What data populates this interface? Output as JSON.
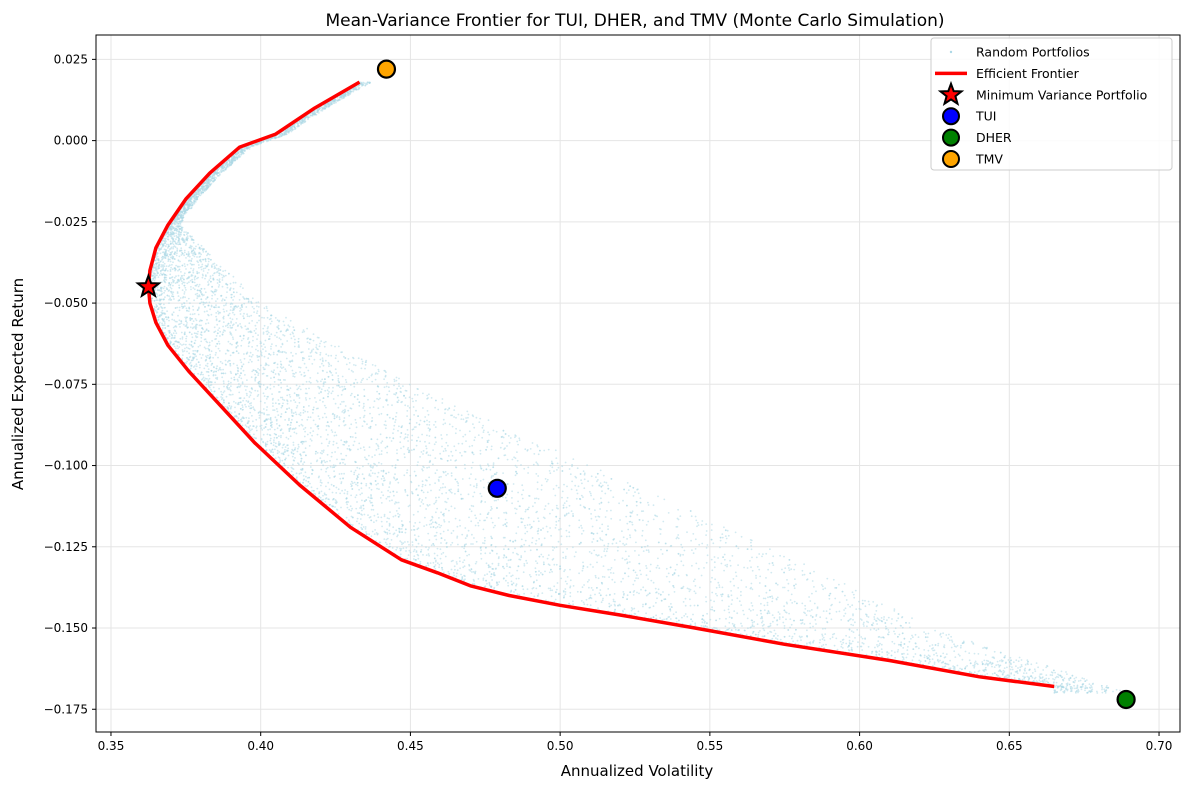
{
  "chart_data": {
    "type": "scatter",
    "title": "Mean-Variance Frontier for TUI, DHER, and TMV (Monte Carlo Simulation)",
    "xlabel": "Annualized Volatility",
    "ylabel": "Annualized Expected Return",
    "xlim": [
      0.345,
      0.707
    ],
    "ylim": [
      -0.182,
      0.0325
    ],
    "xticks": [
      0.35,
      0.4,
      0.45,
      0.5,
      0.55,
      0.6,
      0.65,
      0.7
    ],
    "xtick_labels": [
      "0.35",
      "0.40",
      "0.45",
      "0.50",
      "0.55",
      "0.60",
      "0.65",
      "0.70"
    ],
    "yticks": [
      0.025,
      0.0,
      -0.025,
      -0.05,
      -0.075,
      -0.1,
      -0.125,
      -0.15,
      -0.175
    ],
    "ytick_labels": [
      "0.025",
      "0.000",
      "−0.025",
      "−0.050",
      "−0.075",
      "−0.100",
      "−0.125",
      "−0.150",
      "−0.175"
    ],
    "grid": true,
    "legend_position": "top-right",
    "random_portfolios": {
      "name": "Random Portfolios",
      "color": "#add8e6",
      "count": 9000
    },
    "efficient_frontier": {
      "name": "Efficient Frontier",
      "color": "#ff0000",
      "points": [
        [
          0.433,
          0.018
        ],
        [
          0.418,
          0.01
        ],
        [
          0.405,
          0.002
        ],
        [
          0.393,
          -0.002
        ],
        [
          0.383,
          -0.01
        ],
        [
          0.375,
          -0.018
        ],
        [
          0.369,
          -0.026
        ],
        [
          0.365,
          -0.033
        ],
        [
          0.363,
          -0.04
        ],
        [
          0.3625,
          -0.045
        ],
        [
          0.363,
          -0.05
        ],
        [
          0.365,
          -0.056
        ],
        [
          0.369,
          -0.063
        ],
        [
          0.376,
          -0.071
        ],
        [
          0.386,
          -0.081
        ],
        [
          0.398,
          -0.093
        ],
        [
          0.413,
          -0.106
        ],
        [
          0.43,
          -0.119
        ],
        [
          0.447,
          -0.129
        ],
        [
          0.459,
          -0.133
        ],
        [
          0.47,
          -0.137
        ],
        [
          0.483,
          -0.14
        ],
        [
          0.5,
          -0.143
        ],
        [
          0.52,
          -0.146
        ],
        [
          0.545,
          -0.15
        ],
        [
          0.575,
          -0.155
        ],
        [
          0.61,
          -0.16
        ],
        [
          0.64,
          -0.165
        ],
        [
          0.665,
          -0.168
        ]
      ]
    },
    "min_variance": {
      "name": "Minimum Variance Portfolio",
      "x": 0.3625,
      "y": -0.045,
      "color": "#ff0000"
    },
    "assets": [
      {
        "name": "TUI",
        "x": 0.479,
        "y": -0.107,
        "color": "#0000ff"
      },
      {
        "name": "DHER",
        "x": 0.689,
        "y": -0.172,
        "color": "#008000"
      },
      {
        "name": "TMV",
        "x": 0.442,
        "y": 0.022,
        "color": "#ffa500"
      }
    ]
  }
}
